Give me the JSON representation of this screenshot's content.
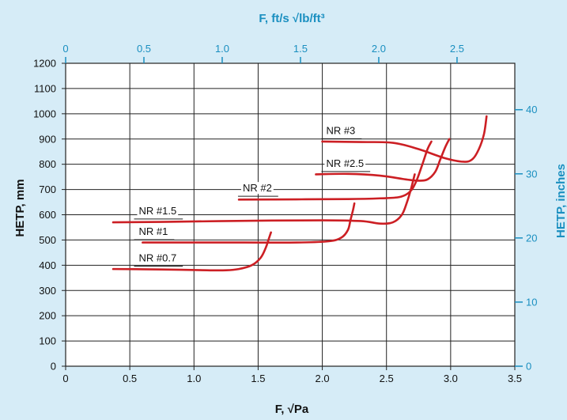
{
  "chart_data": {
    "type": "line",
    "xlabel": "F, √Pa",
    "ylabel": "HETP, mm",
    "x2label": "F, ft/s √lb/ft³",
    "y2label": "HETP, inches",
    "xlim": [
      0,
      3.5
    ],
    "ylim": [
      0,
      1200
    ],
    "x2lim": [
      0,
      2.869
    ],
    "y2lim": [
      0,
      47.24
    ],
    "x_ticks": [
      0,
      0.5,
      1.0,
      1.5,
      2.0,
      2.5,
      3.0,
      3.5
    ],
    "x_tick_labels": [
      "0",
      "0.5",
      "1.0",
      "1.5",
      "2.0",
      "2.5",
      "3.0",
      "3.5"
    ],
    "y_ticks": [
      0,
      100,
      200,
      300,
      400,
      500,
      600,
      700,
      800,
      900,
      1000,
      1100,
      1200
    ],
    "y_tick_labels": [
      "0",
      "100",
      "200",
      "300",
      "400",
      "500",
      "600",
      "700",
      "800",
      "900",
      "1000",
      "1100",
      "1200"
    ],
    "x2_ticks": [
      0,
      0.5,
      1.0,
      1.5,
      2.0,
      2.5
    ],
    "x2_tick_labels": [
      "0",
      "0.5",
      "1.0",
      "1.5",
      "2.0",
      "2.5"
    ],
    "y2_ticks": [
      0,
      10,
      20,
      30,
      40
    ],
    "y2_tick_labels": [
      "0",
      "10",
      "20",
      "30",
      "40"
    ],
    "grid": true,
    "series": [
      {
        "name": "NR #0.7",
        "x": [
          0.37,
          0.6,
          0.9,
          1.1,
          1.25,
          1.35,
          1.45,
          1.52,
          1.56,
          1.58,
          1.6
        ],
        "y": [
          385,
          384,
          382,
          380,
          380,
          385,
          400,
          430,
          470,
          500,
          530
        ]
      },
      {
        "name": "NR #1",
        "x": [
          0.6,
          1.0,
          1.4,
          1.8,
          2.05,
          2.15,
          2.2,
          2.22,
          2.24,
          2.25
        ],
        "y": [
          490,
          490,
          490,
          490,
          495,
          510,
          540,
          580,
          620,
          645
        ]
      },
      {
        "name": "NR #1.5",
        "x": [
          0.37,
          0.8,
          1.4,
          2.0,
          2.3,
          2.45,
          2.55,
          2.62,
          2.66,
          2.69,
          2.72
        ],
        "y": [
          570,
          572,
          576,
          578,
          575,
          565,
          570,
          600,
          650,
          700,
          760
        ]
      },
      {
        "name": "NR #2",
        "x": [
          1.35,
          1.8,
          2.2,
          2.45,
          2.6,
          2.68,
          2.73,
          2.78,
          2.82,
          2.85
        ],
        "y": [
          660,
          661,
          662,
          665,
          670,
          690,
          730,
          800,
          860,
          890
        ]
      },
      {
        "name": "NR #2.5",
        "x": [
          1.95,
          2.2,
          2.45,
          2.65,
          2.75,
          2.82,
          2.88,
          2.92,
          2.96,
          2.99
        ],
        "y": [
          760,
          762,
          755,
          740,
          735,
          740,
          770,
          820,
          870,
          900
        ]
      },
      {
        "name": "NR #3",
        "x": [
          2.0,
          2.3,
          2.55,
          2.75,
          2.95,
          3.1,
          3.17,
          3.22,
          3.26,
          3.28
        ],
        "y": [
          890,
          888,
          885,
          860,
          825,
          810,
          820,
          860,
          920,
          990
        ]
      }
    ],
    "label_positions": [
      {
        "name": "NR #0.7",
        "x": 0.57,
        "y": 415
      },
      {
        "name": "NR #1",
        "x": 0.57,
        "y": 520
      },
      {
        "name": "NR #1.5",
        "x": 0.57,
        "y": 602
      },
      {
        "name": "NR #2",
        "x": 1.38,
        "y": 692
      },
      {
        "name": "NR #2.5",
        "x": 2.03,
        "y": 790
      },
      {
        "name": "NR #3",
        "x": 2.03,
        "y": 920
      }
    ],
    "colors": {
      "background": "#d6ecf7",
      "plot_background": "#ffffff",
      "curve": "#cc1f24",
      "secondary_axis": "#1a8fc0",
      "grid": "#222222"
    }
  }
}
